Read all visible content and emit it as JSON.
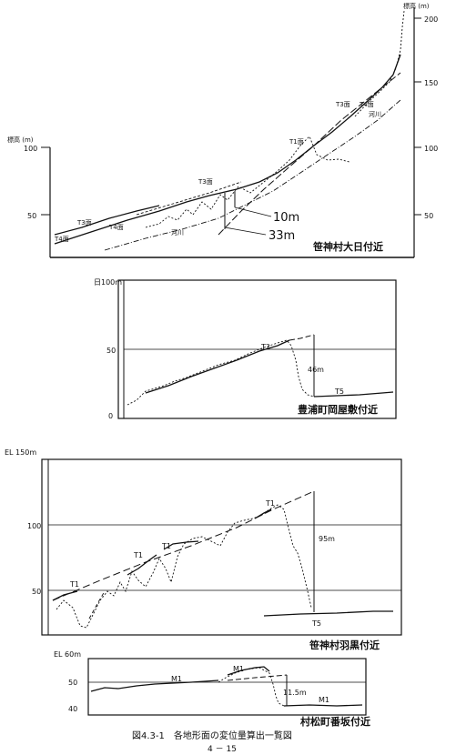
{
  "figure": {
    "caption": "図4.3-1　各地形面の変位量算出一覧図",
    "page_number": "4 － 15"
  },
  "chart_data": [
    {
      "type": "line",
      "location": "笹神村大日付近",
      "left_axis_label": "標高 (m)",
      "right_axis_label": "標高 (m)",
      "left_ticks": [
        "100",
        "50"
      ],
      "right_ticks": [
        "200",
        "150",
        "100",
        "50"
      ],
      "surface_labels": [
        "T4面",
        "T3面",
        "T4面",
        "T3面",
        "T1面",
        "T3面",
        "T4面"
      ],
      "river_labels": [
        "河川",
        "河川"
      ],
      "displacements": [
        "10m",
        "33m"
      ]
    },
    {
      "type": "line",
      "location": "豊浦町岡屋敷付近",
      "axis_label": "日100m",
      "ticks": [
        "50",
        "0"
      ],
      "surface_labels": [
        "T2",
        "T5"
      ],
      "displacement": "46m"
    },
    {
      "type": "line",
      "location": "笹神村羽黒付近",
      "axis_label": "EL 150m",
      "ticks": [
        "100",
        "50"
      ],
      "surface_labels": [
        "T1",
        "T1",
        "T1",
        "T1",
        "T5"
      ],
      "displacement": "95m"
    },
    {
      "type": "line",
      "location": "村松町番坂付近",
      "axis_label": "EL 60m",
      "ticks": [
        "50",
        "40"
      ],
      "surface_labels": [
        "M1",
        "M1",
        "M1"
      ],
      "displacement": "11.5m"
    }
  ]
}
